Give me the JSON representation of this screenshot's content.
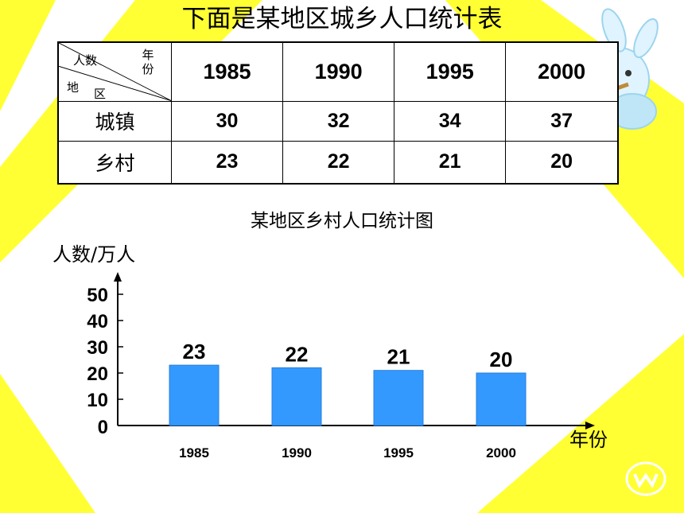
{
  "title": "下面是某地区城乡人口统计表",
  "table": {
    "header_corner": {
      "top": "人数",
      "top_right": "年份",
      "bottom_left": "地",
      "bottom_right": "区"
    },
    "years": [
      "1985",
      "1990",
      "1995",
      "2000"
    ],
    "rows": [
      {
        "label": "城镇",
        "values": [
          "30",
          "32",
          "34",
          "37"
        ]
      },
      {
        "label": "乡村",
        "values": [
          "23",
          "22",
          "21",
          "20"
        ]
      }
    ]
  },
  "chart_title": "某地区乡村人口统计图",
  "chart_data": {
    "type": "bar",
    "title": "某地区乡村人口统计图",
    "ylabel": "人数/万人",
    "xlabel": "年份",
    "categories": [
      "1985",
      "1990",
      "1995",
      "2000"
    ],
    "values": [
      23,
      22,
      21,
      20
    ],
    "y_ticks": [
      "0",
      "10",
      "20",
      "30",
      "40",
      "50"
    ],
    "ylim": [
      0,
      50
    ],
    "grid": false,
    "bar_color": "#3399ff",
    "data_labels": [
      "23",
      "22",
      "21",
      "20"
    ]
  },
  "colors": {
    "background_accent": "#ffff33",
    "bar": "#3399ff"
  },
  "decorations": {
    "mascot": "cartoon-rabbit-with-flute",
    "badge": "logo-badge"
  }
}
